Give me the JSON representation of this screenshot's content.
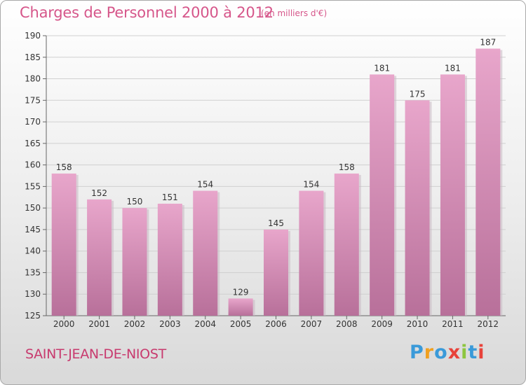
{
  "chart_data": {
    "type": "bar",
    "title": "Charges de Personnel 2000 à 2012",
    "subtitle": "(en milliers d'€)",
    "categories": [
      "2000",
      "2001",
      "2002",
      "2003",
      "2004",
      "2005",
      "2006",
      "2007",
      "2008",
      "2009",
      "2010",
      "2011",
      "2012"
    ],
    "values": [
      158,
      152,
      150,
      151,
      154,
      129,
      145,
      154,
      158,
      181,
      175,
      181,
      187
    ],
    "ylim": [
      125,
      190
    ],
    "yticks": [
      125,
      130,
      135,
      140,
      145,
      150,
      155,
      160,
      165,
      170,
      175,
      180,
      185,
      190
    ],
    "xlabel": "",
    "ylabel": "",
    "grid": true,
    "colors": {
      "bar_top": "#e8a6cb",
      "bar_bottom": "#b8709a",
      "grid": "#d0d0d0",
      "title": "#d6568a"
    }
  },
  "footer": {
    "city": "SAINT-JEAN-DE-NIOST",
    "logo": [
      "P",
      "r",
      "o",
      "x",
      "i",
      "t",
      "i"
    ],
    "logo_colors": [
      "#3a9ad9",
      "#f0a020",
      "#3a9ad9",
      "#e8423a",
      "#8dc63f",
      "#3a9ad9",
      "#e8423a"
    ]
  }
}
